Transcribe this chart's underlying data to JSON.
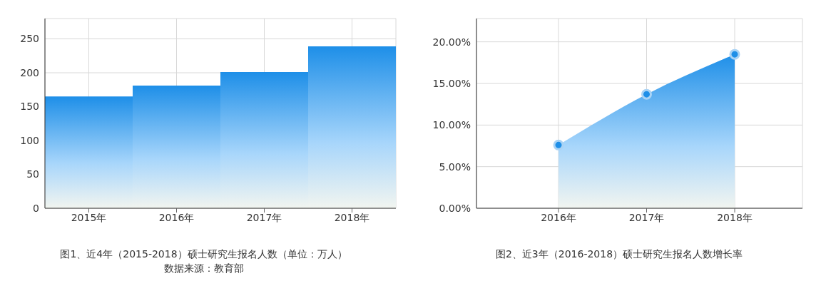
{
  "chart_data": [
    {
      "type": "bar",
      "categories": [
        "2015年",
        "2016年",
        "2017年",
        "2018年"
      ],
      "values": [
        165,
        181,
        201,
        239
      ],
      "color": "#1e8fe8",
      "ylim": [
        0,
        280
      ],
      "yticks": [
        0,
        50,
        100,
        150,
        200,
        250
      ],
      "grid": true,
      "annotations": [
        "图1、近4年（2015-2018）硕士研究生报名人数（单位：万人）",
        "数据来源：教育部"
      ]
    },
    {
      "type": "area",
      "categories": [
        "2016年",
        "2017年",
        "2018年"
      ],
      "values": [
        7.6,
        13.7,
        18.5
      ],
      "color": "#1e8fe8",
      "marker": "circle",
      "ylim": [
        0,
        22.8
      ],
      "yticks": [
        {
          "value": 0,
          "label": "0.00%"
        },
        {
          "value": 5,
          "label": "5.00%"
        },
        {
          "value": 10,
          "label": "10.00%"
        },
        {
          "value": 15,
          "label": "15.00%"
        },
        {
          "value": 20,
          "label": "20.00%"
        }
      ],
      "grid": true,
      "annotations": [
        "图2、近3年（2016-2018）硕士研究生报名人数增长率"
      ]
    }
  ]
}
